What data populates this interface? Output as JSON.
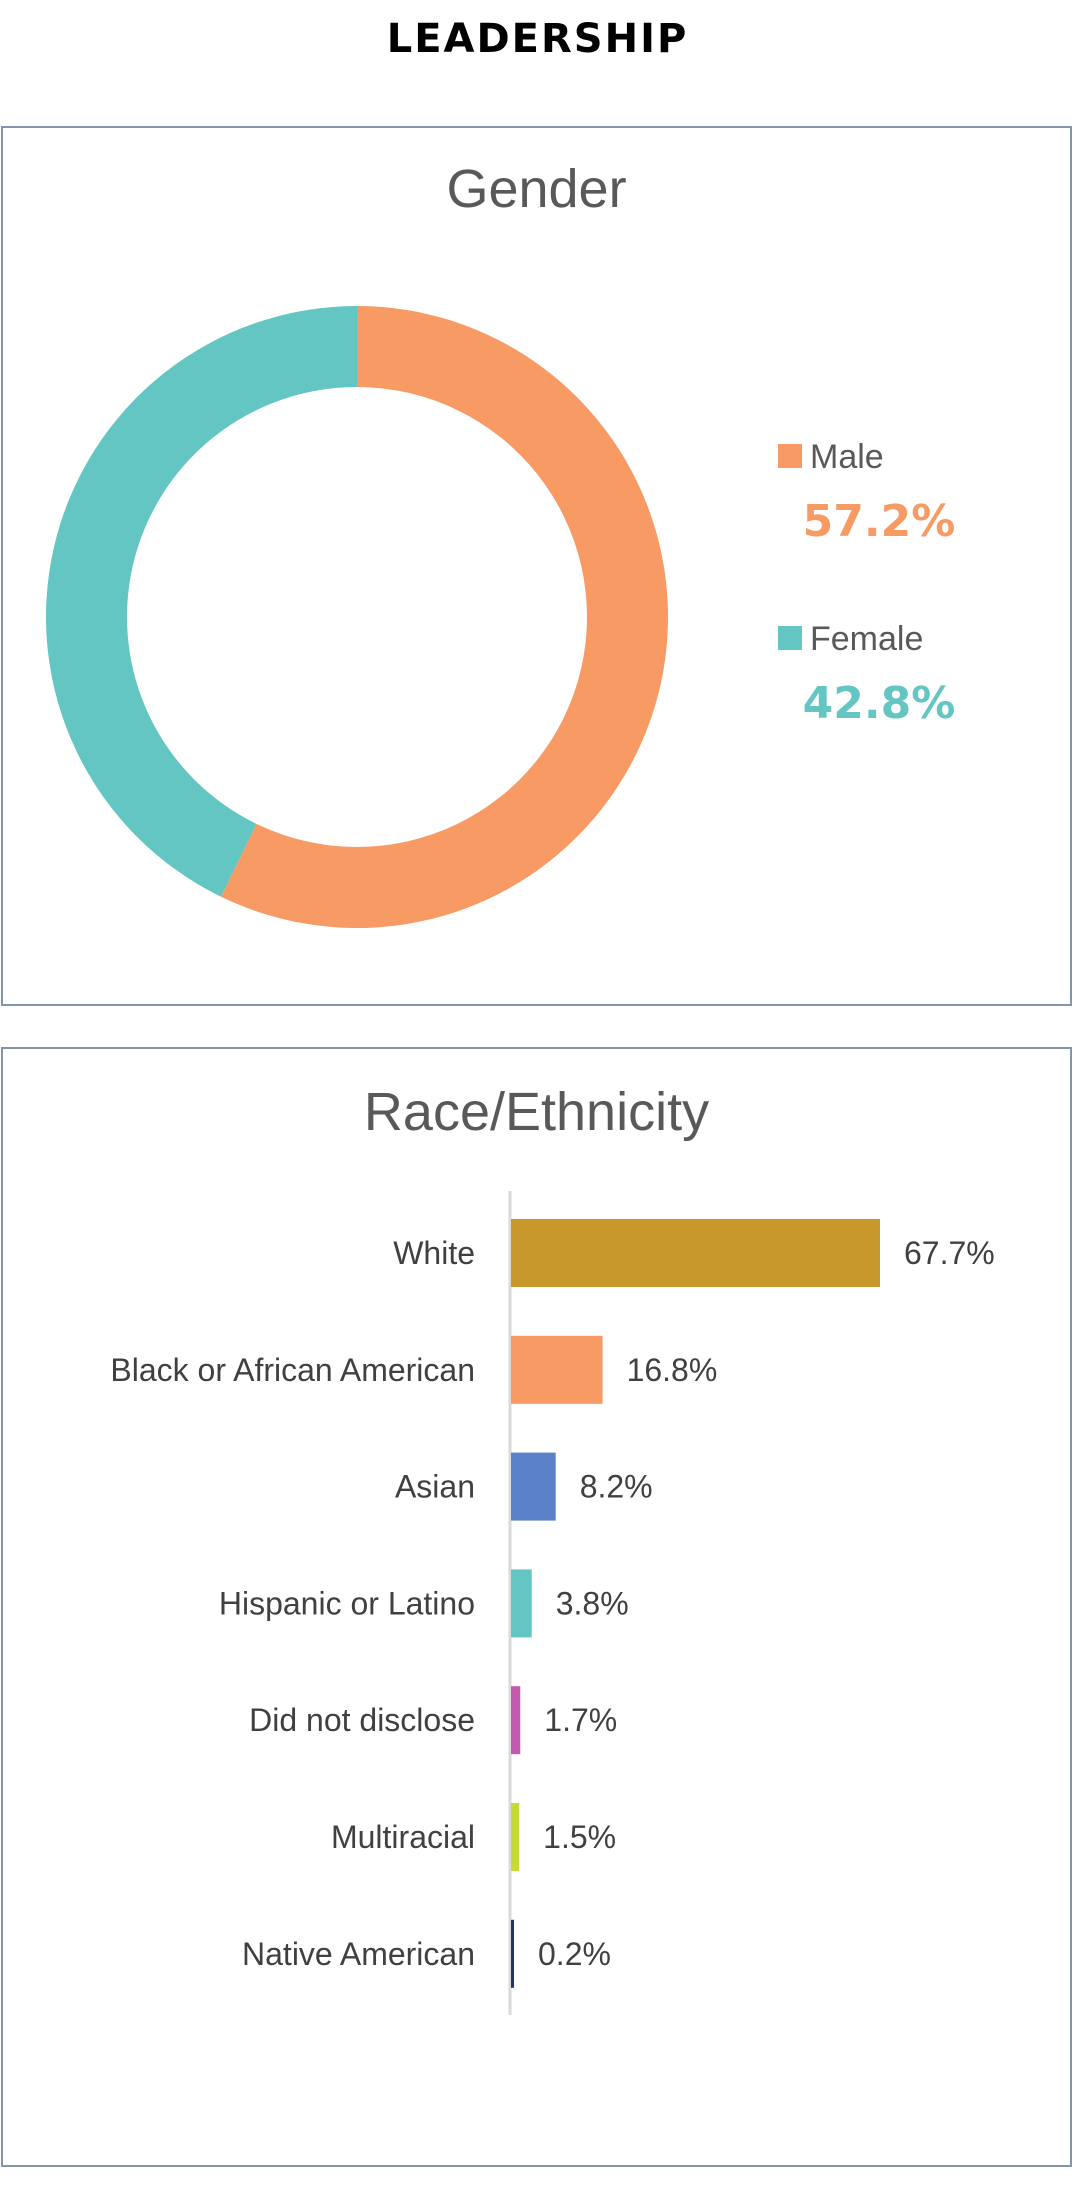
{
  "page": {
    "heading": "LEADERSHIP"
  },
  "chart_data": [
    {
      "type": "pie",
      "variant": "donut",
      "title": "Gender",
      "start_angle_deg": 0,
      "direction": "clockwise",
      "legend_placement": "right",
      "series": [
        {
          "name": "Male",
          "value": 57.2,
          "label": "57.2%",
          "color": "#f79a64"
        },
        {
          "name": "Female",
          "value": 42.8,
          "label": "42.8%",
          "color": "#63c6c3"
        }
      ]
    },
    {
      "type": "bar",
      "orientation": "horizontal",
      "title": "Race/Ethnicity",
      "xlim": [
        0,
        100
      ],
      "grid": false,
      "categories": [
        "White",
        "Black or African American",
        "Asian",
        "Hispanic or Latino",
        "Did not disclose",
        "Multiracial",
        "Native American"
      ],
      "values": [
        67.7,
        16.8,
        8.2,
        3.8,
        1.7,
        1.5,
        0.2
      ],
      "value_labels": [
        "67.7%",
        "16.8%",
        "8.2%",
        "3.8%",
        "1.7%",
        "1.5%",
        "0.2%"
      ],
      "colors": [
        "#c8992a",
        "#f79a64",
        "#5b82c8",
        "#63c6c3",
        "#c25aae",
        "#c6d934",
        "#1f3566"
      ]
    }
  ]
}
